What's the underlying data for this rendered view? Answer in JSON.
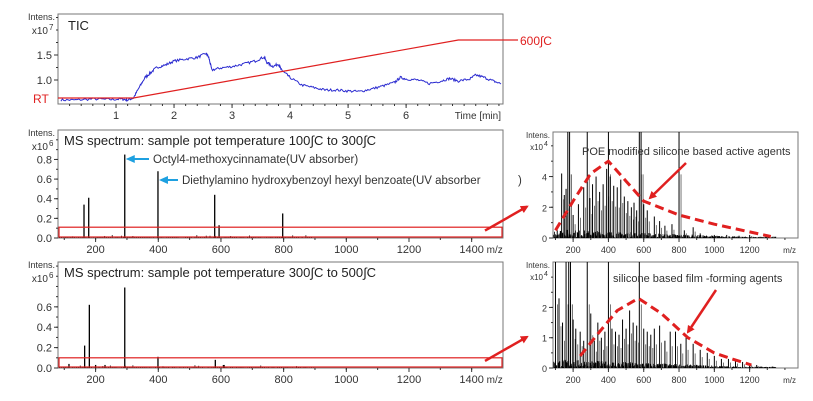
{
  "colors": {
    "tic": "#2b2bd0",
    "temperature": "#e02020",
    "spectrum": "#000000",
    "annotation_arrow": "#1ea0e0",
    "highlight": "#e02020"
  },
  "chart_data": [
    {
      "id": "tic",
      "type": "line",
      "title": "TIC",
      "ylabel": "Intens.",
      "yexp": "x10",
      "yexp_power": "7",
      "xlabel": "Time [min]",
      "xlim": [
        0,
        7.67
      ],
      "ylim": [
        0.52,
        2.32
      ],
      "xticks": [
        1,
        2,
        3,
        4,
        5,
        6
      ],
      "xtick_labels": [
        "1",
        "2",
        "3",
        "4",
        "5",
        "6"
      ],
      "yticks": [
        1.0,
        1.5
      ],
      "ytick_labels": [
        "1.0",
        "1.5"
      ],
      "series": [
        {
          "x": [
            0.05,
            0.3,
            0.6,
            0.9,
            1.1,
            1.2,
            1.3,
            1.4,
            1.5,
            1.6,
            1.7,
            1.85,
            2.0,
            2.2,
            2.4,
            2.55,
            2.6,
            2.65,
            2.8,
            3.0,
            3.2,
            3.4,
            3.55,
            3.6,
            3.7,
            3.8,
            3.85,
            3.9,
            4.0,
            4.2,
            4.4,
            4.6,
            4.8,
            5.0,
            5.2,
            5.4,
            5.6,
            5.8,
            5.9,
            6.0,
            6.2,
            6.4,
            6.6,
            6.75,
            6.9,
            7.1,
            7.2,
            7.35,
            7.5,
            7.65
          ],
          "y": [
            0.6,
            0.6,
            0.62,
            0.61,
            0.62,
            0.6,
            0.64,
            0.85,
            1.05,
            1.15,
            1.25,
            1.3,
            1.38,
            1.42,
            1.45,
            1.53,
            1.45,
            1.2,
            1.24,
            1.27,
            1.32,
            1.38,
            1.46,
            1.35,
            1.27,
            1.32,
            1.2,
            1.15,
            1.05,
            0.9,
            0.85,
            0.8,
            0.8,
            0.78,
            0.77,
            0.82,
            0.88,
            0.95,
            1.05,
            1.02,
            1.0,
            0.93,
            0.98,
            1.03,
            0.98,
            1.02,
            1.1,
            1.05,
            0.98,
            0.92
          ]
        }
      ],
      "temperature_profile": {
        "x": [
          0,
          1.3,
          6.9,
          7.67
        ],
        "labels": {
          "start": "RT",
          "end": "600∫C"
        }
      }
    },
    {
      "id": "ms1",
      "type": "bar",
      "title": "MS spectrum: sample pot temperature 100∫C to 300∫C",
      "ylabel": "Intens.",
      "yexp": "x10",
      "yexp_power": "6",
      "xlabel": "m/z",
      "xlim": [
        80,
        1500
      ],
      "ylim": [
        0,
        1.1
      ],
      "xticks": [
        200,
        400,
        600,
        800,
        1000,
        1200,
        1400
      ],
      "xtick_labels": [
        "200",
        "400",
        "600",
        "800",
        "1000",
        "1200",
        "1400"
      ],
      "yticks": [
        0,
        0.2,
        0.4,
        0.6,
        0.8
      ],
      "ytick_labels": [
        "0.0",
        "0.2",
        "0.4",
        "0.6",
        "0.8"
      ],
      "peaks": {
        "x": [
          163,
          178,
          293,
          399,
          580,
          594,
          797
        ],
        "y": [
          0.34,
          0.41,
          0.85,
          0.68,
          0.44,
          0.13,
          0.25
        ]
      },
      "zoom_region_ylim": [
        0,
        0.11
      ],
      "annotations": [
        {
          "text": "Octyl4-methoxycinnamate(UV absorber)",
          "target_mz": 293
        },
        {
          "text": "Diethylamino hydroxybenzoyl hexyl benzoate(UV absorber",
          "target_mz": 399,
          "trailing": ")"
        }
      ]
    },
    {
      "id": "ms1-zoom",
      "type": "bar",
      "title": "POE modified silicone based active agents",
      "ylabel": "Intens.",
      "yexp": "x10",
      "yexp_power": "4",
      "xlabel": "m/z",
      "xlim": [
        86,
        1474
      ],
      "ylim": [
        0,
        6.9
      ],
      "xticks": [
        200,
        400,
        600,
        800,
        1000,
        1200
      ],
      "xtick_labels": [
        "200",
        "400",
        "600",
        "800",
        "1000",
        "1200"
      ],
      "yticks": [
        0,
        2,
        4
      ],
      "ytick_labels": [
        "0",
        "2",
        "4"
      ],
      "peaks": {
        "x": [
          110,
          135,
          150,
          160,
          170,
          180,
          200,
          230,
          260,
          280,
          295,
          310,
          330,
          350,
          370,
          390,
          400,
          410,
          430,
          450,
          470,
          490,
          510,
          530,
          545,
          560,
          575,
          585,
          600,
          620,
          660,
          690,
          720,
          760,
          800,
          830,
          880,
          920,
          1000,
          1070,
          1140,
          1200
        ],
        "y": [
          0.5,
          4.2,
          2.8,
          3.2,
          7,
          7,
          1.5,
          2.2,
          3.3,
          7,
          2.6,
          3.5,
          4.0,
          3.0,
          3.5,
          4.5,
          7,
          4.0,
          3.4,
          3.3,
          3.8,
          2.7,
          2.4,
          2.0,
          2.3,
          1.8,
          7,
          7,
          2.2,
          1.8,
          1.4,
          1.1,
          0.8,
          0.9,
          7,
          0.5,
          0.7,
          0.3,
          0.2,
          0.2,
          0.15,
          0.2
        ]
      },
      "envelope": {
        "x": [
          100,
          200,
          300,
          400,
          500,
          600,
          800,
          1000,
          1200,
          1320
        ],
        "y": [
          0.5,
          2.4,
          4.2,
          5.0,
          3.7,
          2.4,
          1.5,
          0.9,
          0.4,
          0.1
        ]
      }
    },
    {
      "id": "ms2",
      "type": "bar",
      "title": "MS spectrum: sample pot temperature 300∫C to 500∫C",
      "ylabel": "Intens.",
      "yexp": "x10",
      "yexp_power": "6",
      "xlabel": "m/z",
      "xlim": [
        80,
        1500
      ],
      "ylim": [
        0,
        1.04
      ],
      "xticks": [
        200,
        400,
        600,
        800,
        1000,
        1200,
        1400
      ],
      "xtick_labels": [
        "200",
        "400",
        "600",
        "800",
        "1000",
        "1200",
        "1400"
      ],
      "yticks": [
        0,
        0.2,
        0.4,
        0.6
      ],
      "ytick_labels": [
        "0.0",
        "0.2",
        "0.4",
        "0.6"
      ],
      "peaks": {
        "x": [
          115,
          165,
          180,
          200,
          230,
          293,
          399,
          582,
          610
        ],
        "y": [
          0.04,
          0.22,
          0.62,
          0.03,
          0.03,
          0.79,
          0.11,
          0.08,
          0.03
        ]
      },
      "zoom_region_ylim": [
        0,
        0.1
      ]
    },
    {
      "id": "ms2-zoom",
      "type": "bar",
      "title": "silicone based film -forming agents",
      "ylabel": "Intens.",
      "yexp": "x10",
      "yexp_power": "4",
      "xlabel": "m/z",
      "xlim": [
        86,
        1474
      ],
      "ylim": [
        0,
        3.5
      ],
      "xticks": [
        200,
        400,
        600,
        800,
        1000,
        1200
      ],
      "xtick_labels": [
        "200",
        "400",
        "600",
        "800",
        "1000",
        "1200"
      ],
      "yticks": [
        0,
        1,
        2
      ],
      "ytick_labels": [
        "0",
        "1",
        "2"
      ],
      "peaks": {
        "x": [
          100,
          120,
          140,
          160,
          175,
          185,
          200,
          215,
          240,
          260,
          280,
          300,
          320,
          340,
          360,
          380,
          400,
          420,
          440,
          460,
          480,
          500,
          520,
          540,
          560,
          575,
          600,
          620,
          640,
          660,
          690,
          720,
          750,
          780,
          810,
          840,
          880,
          920,
          960,
          1000,
          1040,
          1080,
          1120,
          1160,
          1200,
          1240
        ],
        "y": [
          3.5,
          2.3,
          1.5,
          3.5,
          3.5,
          3.5,
          1.6,
          1.3,
          1.2,
          0.9,
          3.5,
          1.8,
          0.9,
          1.5,
          1.0,
          1.2,
          3.5,
          1.3,
          1.2,
          1.1,
          1.6,
          1.3,
          1.9,
          1.5,
          1.4,
          3.5,
          1.3,
          1.2,
          1.1,
          1.3,
          1.4,
          0.9,
          1.2,
          1.2,
          0.8,
          1.0,
          0.8,
          0.6,
          0.5,
          0.4,
          0.3,
          0.3,
          0.25,
          0.2,
          0.15,
          0.1
        ]
      },
      "envelope": {
        "x": [
          240,
          350,
          450,
          570,
          700,
          850,
          1000,
          1100,
          1210
        ],
        "y": [
          0.4,
          1.2,
          1.9,
          2.3,
          1.8,
          1.0,
          0.5,
          0.3,
          0.1
        ]
      }
    }
  ]
}
